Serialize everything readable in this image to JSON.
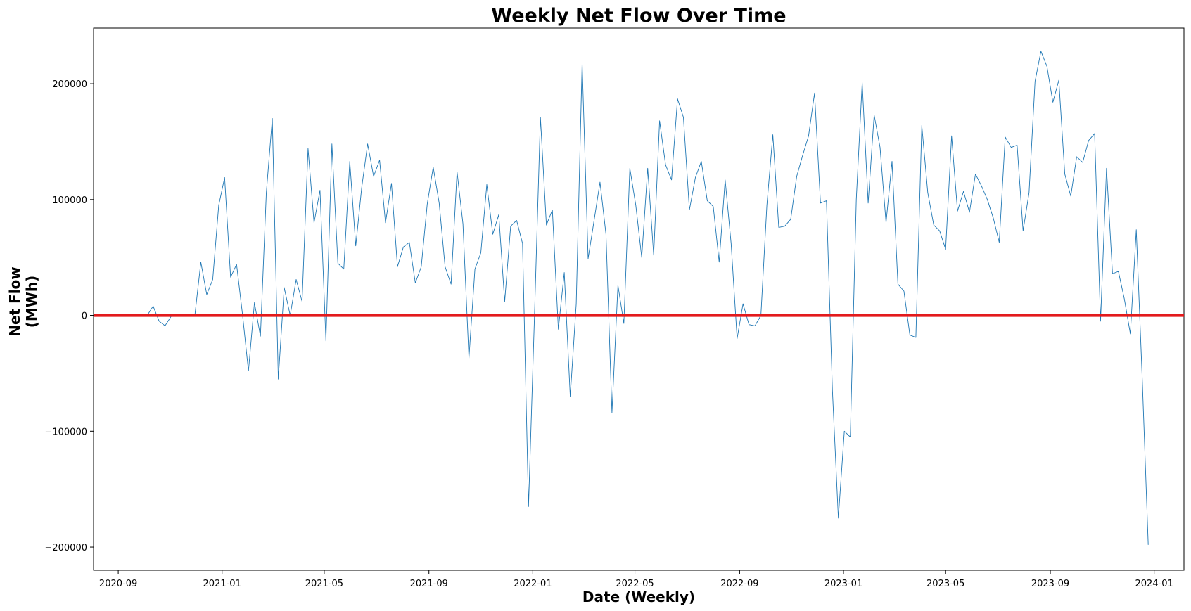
{
  "chart_data": {
    "type": "line",
    "title": "Weekly Net Flow Over Time",
    "xlabel": "Date (Weekly)",
    "ylabel": "Net Flow\n(MWh)",
    "xlim": [
      "2020-08-03",
      "2024-02-05"
    ],
    "ylim": [
      -220000,
      248000
    ],
    "x_ticks": [
      "2020-09-01",
      "2021-01-01",
      "2021-05-01",
      "2021-09-01",
      "2022-01-01",
      "2022-05-01",
      "2022-09-01",
      "2023-01-01",
      "2023-05-01",
      "2023-09-01",
      "2024-01-01"
    ],
    "x_tick_labels": [
      "2020-09",
      "2021-01",
      "2021-05",
      "2021-09",
      "2022-01",
      "2022-05",
      "2022-09",
      "2023-01",
      "2023-05",
      "2023-09",
      "2024-01"
    ],
    "y_ticks": [
      -200000,
      -100000,
      0,
      100000,
      200000
    ],
    "y_tick_labels": [
      "−200000",
      "−100000",
      "0",
      "100000",
      "200000"
    ],
    "grid": false,
    "reference_line": {
      "y": 0,
      "color": "#e31a1c"
    },
    "series": [
      {
        "color": "#1f77b4",
        "points": [
          [
            "2020-10-05",
            0
          ],
          [
            "2020-10-12",
            8000
          ],
          [
            "2020-10-19",
            -5000
          ],
          [
            "2020-10-26",
            -9000
          ],
          [
            "2020-11-02",
            -1000
          ],
          [
            "2020-11-09",
            0
          ],
          [
            "2020-11-16",
            0
          ],
          [
            "2020-11-23",
            0
          ],
          [
            "2020-11-30",
            0
          ],
          [
            "2020-12-07",
            46000
          ],
          [
            "2020-12-14",
            18000
          ],
          [
            "2020-12-21",
            31000
          ],
          [
            "2020-12-28",
            95000
          ],
          [
            "2021-01-04",
            119000
          ],
          [
            "2021-01-11",
            33000
          ],
          [
            "2021-01-18",
            44000
          ],
          [
            "2021-01-25",
            1000
          ],
          [
            "2021-02-01",
            -48000
          ],
          [
            "2021-02-08",
            11000
          ],
          [
            "2021-02-15",
            -18000
          ],
          [
            "2021-02-22",
            106000
          ],
          [
            "2021-03-01",
            170000
          ],
          [
            "2021-03-08",
            -55000
          ],
          [
            "2021-03-15",
            24000
          ],
          [
            "2021-03-22",
            0
          ],
          [
            "2021-03-29",
            31000
          ],
          [
            "2021-04-05",
            12000
          ],
          [
            "2021-04-12",
            144000
          ],
          [
            "2021-04-19",
            80000
          ],
          [
            "2021-04-26",
            108000
          ],
          [
            "2021-05-03",
            -22000
          ],
          [
            "2021-05-10",
            148000
          ],
          [
            "2021-05-17",
            45000
          ],
          [
            "2021-05-24",
            40000
          ],
          [
            "2021-05-31",
            133000
          ],
          [
            "2021-06-07",
            60000
          ],
          [
            "2021-06-14",
            110000
          ],
          [
            "2021-06-21",
            148000
          ],
          [
            "2021-06-28",
            120000
          ],
          [
            "2021-07-05",
            134000
          ],
          [
            "2021-07-12",
            80000
          ],
          [
            "2021-07-19",
            114000
          ],
          [
            "2021-07-26",
            42000
          ],
          [
            "2021-08-02",
            59000
          ],
          [
            "2021-08-09",
            63000
          ],
          [
            "2021-08-16",
            28000
          ],
          [
            "2021-08-23",
            42000
          ],
          [
            "2021-08-30",
            96000
          ],
          [
            "2021-09-06",
            128000
          ],
          [
            "2021-09-13",
            97000
          ],
          [
            "2021-09-20",
            42000
          ],
          [
            "2021-09-27",
            27000
          ],
          [
            "2021-10-04",
            124000
          ],
          [
            "2021-10-11",
            79000
          ],
          [
            "2021-10-18",
            -37000
          ],
          [
            "2021-10-25",
            40000
          ],
          [
            "2021-11-01",
            54000
          ],
          [
            "2021-11-08",
            113000
          ],
          [
            "2021-11-15",
            70000
          ],
          [
            "2021-11-22",
            87000
          ],
          [
            "2021-11-29",
            12000
          ],
          [
            "2021-12-06",
            77000
          ],
          [
            "2021-12-13",
            82000
          ],
          [
            "2021-12-20",
            62000
          ],
          [
            "2021-12-27",
            -165000
          ],
          [
            "2022-01-03",
            0
          ],
          [
            "2022-01-10",
            171000
          ],
          [
            "2022-01-17",
            78000
          ],
          [
            "2022-01-24",
            91000
          ],
          [
            "2022-01-31",
            -12000
          ],
          [
            "2022-02-07",
            37000
          ],
          [
            "2022-02-14",
            -70000
          ],
          [
            "2022-02-21",
            10000
          ],
          [
            "2022-02-28",
            218000
          ],
          [
            "2022-03-07",
            49000
          ],
          [
            "2022-03-14",
            82000
          ],
          [
            "2022-03-21",
            115000
          ],
          [
            "2022-03-28",
            70000
          ],
          [
            "2022-04-04",
            -84000
          ],
          [
            "2022-04-11",
            26000
          ],
          [
            "2022-04-18",
            -7000
          ],
          [
            "2022-04-25",
            127000
          ],
          [
            "2022-05-02",
            95000
          ],
          [
            "2022-05-09",
            50000
          ],
          [
            "2022-05-16",
            127000
          ],
          [
            "2022-05-23",
            52000
          ],
          [
            "2022-05-30",
            168000
          ],
          [
            "2022-06-06",
            130000
          ],
          [
            "2022-06-13",
            117000
          ],
          [
            "2022-06-20",
            187000
          ],
          [
            "2022-06-27",
            171000
          ],
          [
            "2022-07-04",
            91000
          ],
          [
            "2022-07-11",
            119000
          ],
          [
            "2022-07-18",
            133000
          ],
          [
            "2022-07-25",
            99000
          ],
          [
            "2022-08-01",
            94000
          ],
          [
            "2022-08-08",
            46000
          ],
          [
            "2022-08-15",
            117000
          ],
          [
            "2022-08-22",
            62000
          ],
          [
            "2022-08-29",
            -20000
          ],
          [
            "2022-09-05",
            10000
          ],
          [
            "2022-09-12",
            -8000
          ],
          [
            "2022-09-19",
            -9000
          ],
          [
            "2022-09-26",
            0
          ],
          [
            "2022-10-03",
            95000
          ],
          [
            "2022-10-10",
            156000
          ],
          [
            "2022-10-17",
            76000
          ],
          [
            "2022-10-24",
            77000
          ],
          [
            "2022-10-31",
            83000
          ],
          [
            "2022-11-07",
            120000
          ],
          [
            "2022-11-14",
            138000
          ],
          [
            "2022-11-21",
            155000
          ],
          [
            "2022-11-28",
            192000
          ],
          [
            "2022-12-05",
            97000
          ],
          [
            "2022-12-12",
            99000
          ],
          [
            "2022-12-19",
            -65000
          ],
          [
            "2022-12-26",
            -175000
          ],
          [
            "2023-01-02",
            -100000
          ],
          [
            "2023-01-09",
            -105000
          ],
          [
            "2023-01-16",
            100000
          ],
          [
            "2023-01-23",
            201000
          ],
          [
            "2023-01-30",
            97000
          ],
          [
            "2023-02-06",
            173000
          ],
          [
            "2023-02-13",
            145000
          ],
          [
            "2023-02-20",
            80000
          ],
          [
            "2023-02-27",
            133000
          ],
          [
            "2023-03-06",
            27000
          ],
          [
            "2023-03-13",
            21000
          ],
          [
            "2023-03-20",
            -17000
          ],
          [
            "2023-03-27",
            -19000
          ],
          [
            "2023-04-03",
            164000
          ],
          [
            "2023-04-10",
            106000
          ],
          [
            "2023-04-17",
            78000
          ],
          [
            "2023-04-24",
            73000
          ],
          [
            "2023-05-01",
            57000
          ],
          [
            "2023-05-08",
            155000
          ],
          [
            "2023-05-15",
            90000
          ],
          [
            "2023-05-22",
            107000
          ],
          [
            "2023-05-29",
            89000
          ],
          [
            "2023-06-05",
            122000
          ],
          [
            "2023-06-12",
            112000
          ],
          [
            "2023-06-19",
            100000
          ],
          [
            "2023-06-26",
            84000
          ],
          [
            "2023-07-03",
            63000
          ],
          [
            "2023-07-10",
            154000
          ],
          [
            "2023-07-17",
            145000
          ],
          [
            "2023-07-24",
            147000
          ],
          [
            "2023-07-31",
            73000
          ],
          [
            "2023-08-07",
            106000
          ],
          [
            "2023-08-14",
            202000
          ],
          [
            "2023-08-21",
            228000
          ],
          [
            "2023-08-28",
            215000
          ],
          [
            "2023-09-04",
            184000
          ],
          [
            "2023-09-11",
            203000
          ],
          [
            "2023-09-18",
            122000
          ],
          [
            "2023-09-25",
            103000
          ],
          [
            "2023-10-02",
            137000
          ],
          [
            "2023-10-09",
            132000
          ],
          [
            "2023-10-16",
            151000
          ],
          [
            "2023-10-23",
            157000
          ],
          [
            "2023-10-30",
            -5000
          ],
          [
            "2023-11-06",
            127000
          ],
          [
            "2023-11-13",
            36000
          ],
          [
            "2023-11-20",
            38000
          ],
          [
            "2023-11-27",
            14000
          ],
          [
            "2023-12-04",
            -16000
          ],
          [
            "2023-12-11",
            74000
          ],
          [
            "2023-12-18",
            -55000
          ],
          [
            "2023-12-25",
            -198000
          ]
        ]
      }
    ]
  }
}
